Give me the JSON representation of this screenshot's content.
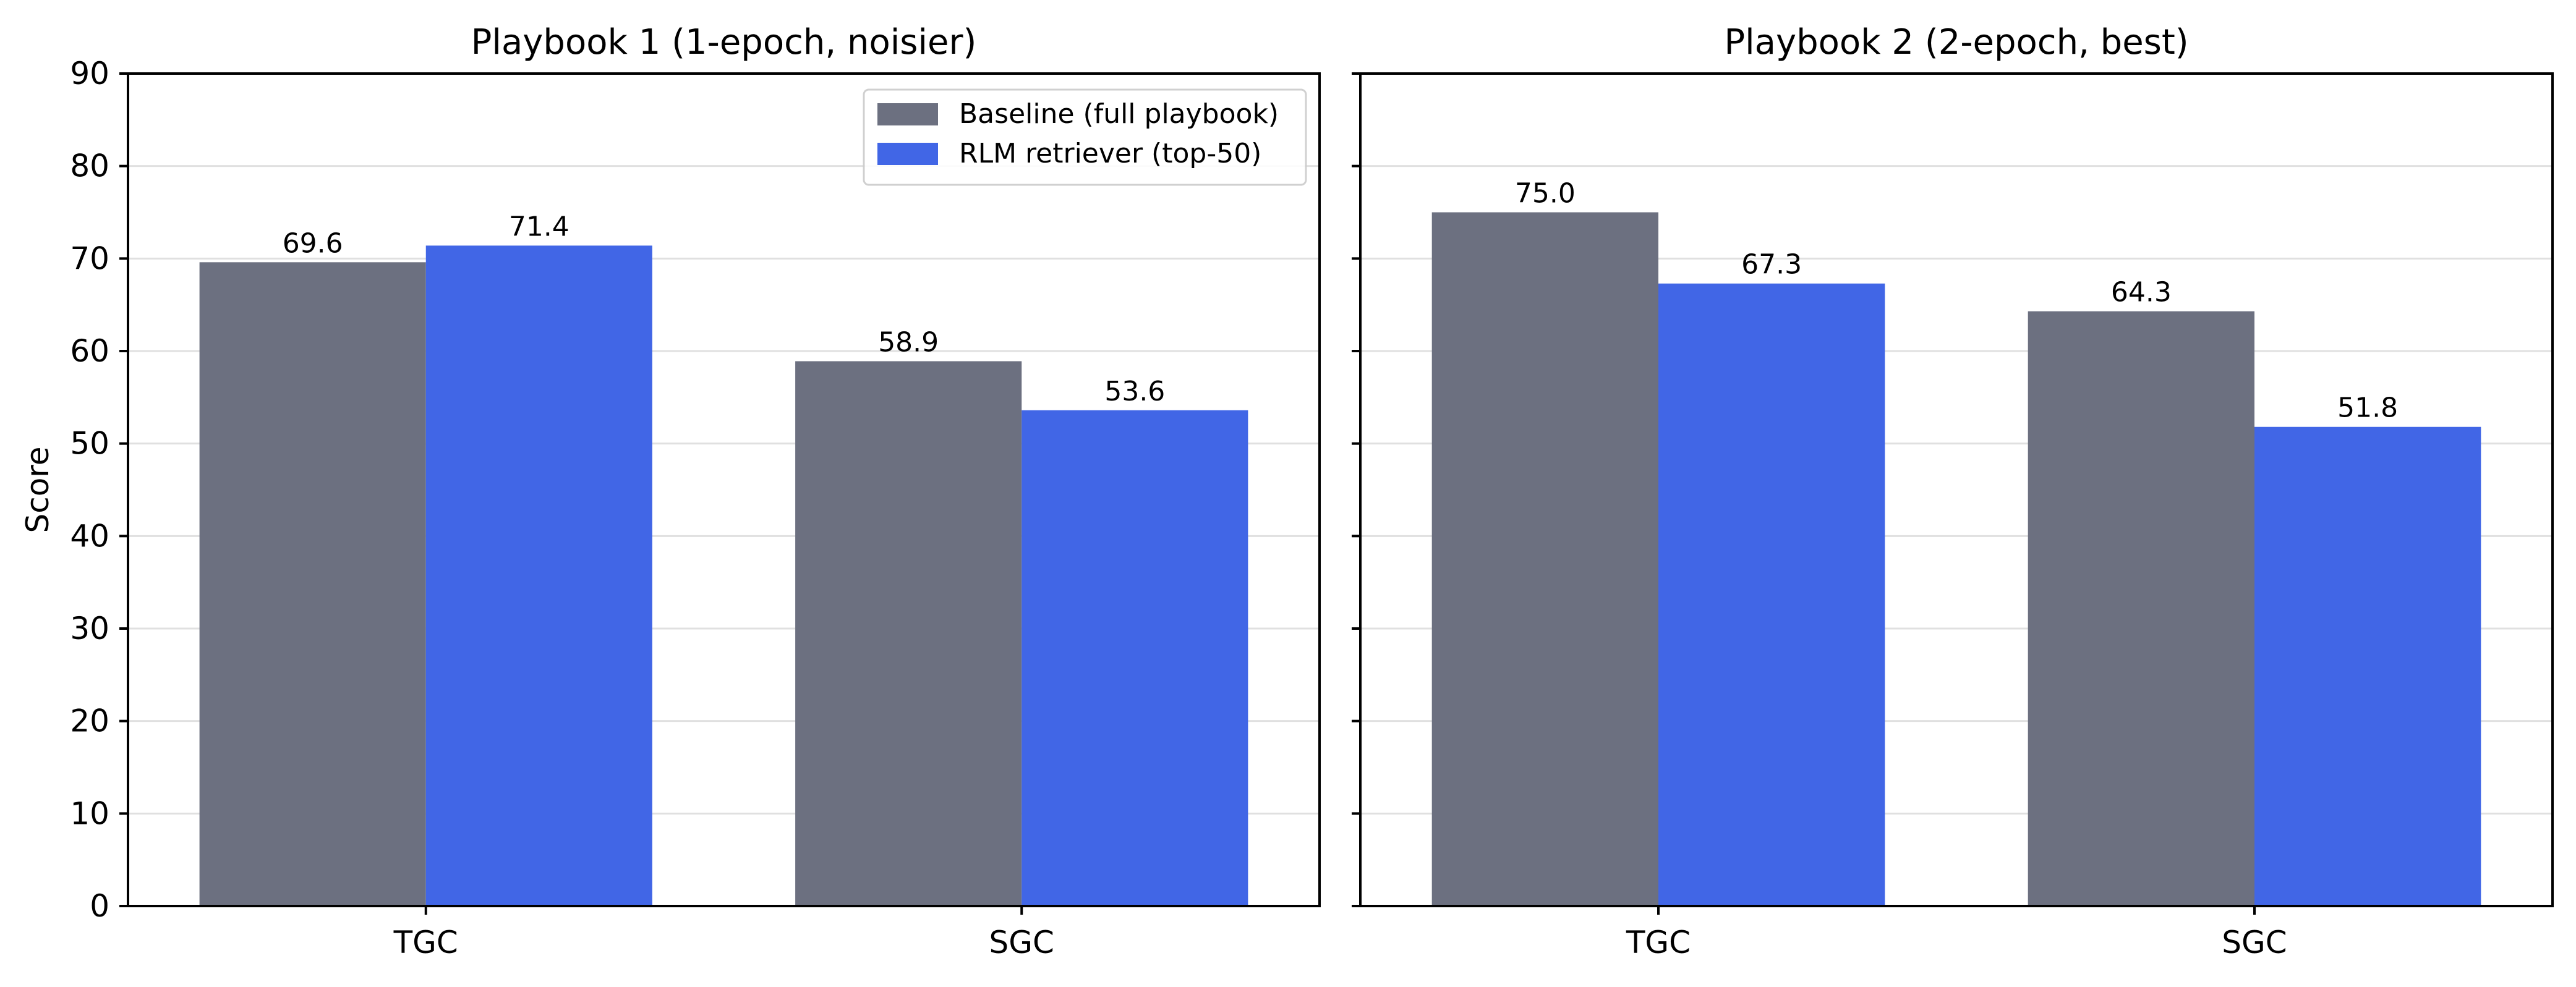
{
  "chart_data": [
    {
      "type": "bar",
      "title": "Playbook 1 (1-epoch, noisier)",
      "categories": [
        "TGC",
        "SGC"
      ],
      "series": [
        {
          "name": "Baseline (full playbook)",
          "values": [
            69.6,
            58.9
          ],
          "color": "#6c7080"
        },
        {
          "name": "RLM retriever (top-50)",
          "values": [
            71.4,
            53.6
          ],
          "color": "#4166e6"
        }
      ],
      "data_labels": [
        [
          "69.6",
          "58.9"
        ],
        [
          "71.4",
          "53.6"
        ]
      ],
      "xlabel": "",
      "ylabel": "Score",
      "ylim": [
        0,
        90
      ],
      "yticks": [
        0,
        10,
        20,
        30,
        40,
        50,
        60,
        70,
        80,
        90
      ],
      "grid": "horizontal",
      "legend": "upper-right"
    },
    {
      "type": "bar",
      "title": "Playbook 2 (2-epoch, best)",
      "categories": [
        "TGC",
        "SGC"
      ],
      "series": [
        {
          "name": "Baseline (full playbook)",
          "values": [
            75.0,
            64.3
          ],
          "color": "#6c7080"
        },
        {
          "name": "RLM retriever (top-50)",
          "values": [
            67.3,
            51.8
          ],
          "color": "#4166e6"
        }
      ],
      "data_labels": [
        [
          "75.0",
          "64.3"
        ],
        [
          "67.3",
          "51.8"
        ]
      ],
      "xlabel": "",
      "ylabel": "",
      "ylim": [
        0,
        90
      ],
      "yticks": [
        0,
        10,
        20,
        30,
        40,
        50,
        60,
        70,
        80,
        90
      ],
      "grid": "horizontal",
      "legend": "none"
    }
  ]
}
